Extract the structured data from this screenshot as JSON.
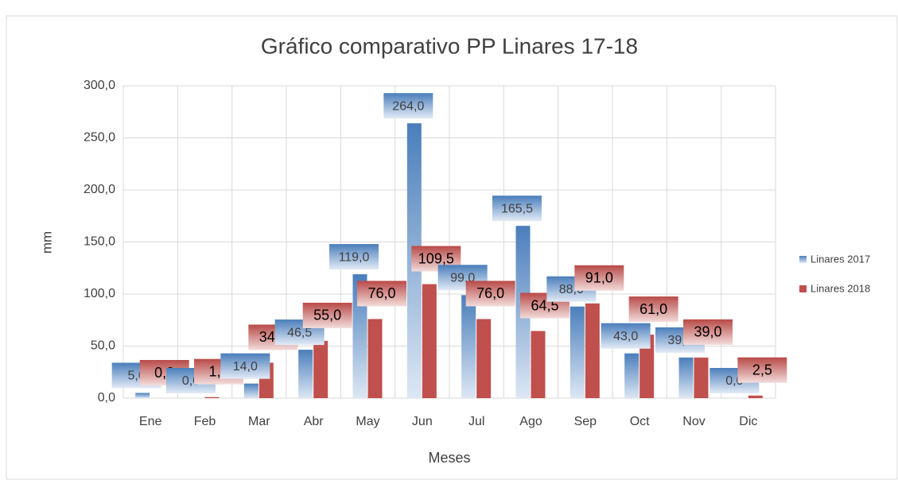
{
  "chart_data": {
    "type": "bar",
    "title": "Gráfico comparativo PP Linares 17-18",
    "x_label": "Meses",
    "y_label": "mm",
    "categories": [
      "Ene",
      "Feb",
      "Mar",
      "Abr",
      "May",
      "Jun",
      "Jul",
      "Ago",
      "Sep",
      "Oct",
      "Nov",
      "Dic"
    ],
    "series": [
      {
        "name": "Linares 2017",
        "color": "#4f81bd",
        "values": [
          5,
          0,
          14,
          46.5,
          119,
          264,
          99,
          165.5,
          88,
          43,
          39,
          0
        ],
        "value_labels": [
          "5,0",
          "0,0",
          "14,0",
          "46,5",
          "119,0",
          "264,0",
          "99,0",
          "165,5",
          "88,0",
          "43,0",
          "39,0",
          "0,0"
        ]
      },
      {
        "name": "Linares 2018",
        "color": "#c0504d",
        "values": [
          0,
          1,
          34,
          55,
          76,
          109.5,
          76,
          64.5,
          91,
          61,
          39,
          2.5
        ],
        "value_labels": [
          "0,0",
          "1,0",
          "34,0",
          "55,0",
          "76,0",
          "109,5",
          "76,0",
          "64,5",
          "91,0",
          "61,0",
          "39,0",
          "2,5"
        ]
      }
    ],
    "ylim": [
      0,
      300
    ],
    "yticks": [
      {
        "value": 0,
        "label": "0,0"
      },
      {
        "value": 50,
        "label": "50,0"
      },
      {
        "value": 100,
        "label": "100,0"
      },
      {
        "value": 150,
        "label": "150,0"
      },
      {
        "value": 200,
        "label": "200,0"
      },
      {
        "value": 250,
        "label": "250,0"
      },
      {
        "value": 300,
        "label": "300,0"
      }
    ],
    "grid": true,
    "legend": "right"
  }
}
